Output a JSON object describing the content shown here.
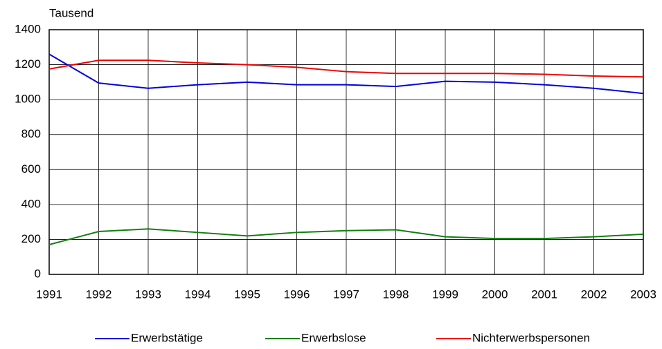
{
  "chart_data": {
    "type": "line",
    "y_label": "Tausend",
    "x": [
      1991,
      1992,
      1993,
      1994,
      1995,
      1996,
      1997,
      1998,
      1999,
      2000,
      2001,
      2002,
      2003
    ],
    "xlim": [
      1991,
      2003
    ],
    "xticks": [
      1991,
      1992,
      1993,
      1994,
      1995,
      1996,
      1997,
      1998,
      1999,
      2000,
      2001,
      2002,
      2003
    ],
    "ylim": [
      0,
      1400
    ],
    "yticks": [
      0,
      200,
      400,
      600,
      800,
      1000,
      1200,
      1400
    ],
    "grid": true,
    "legend": "bottom",
    "series": [
      {
        "name": "Erwerbstätige",
        "color": "#0000dd",
        "values": [
          1260,
          1095,
          1065,
          1085,
          1100,
          1085,
          1085,
          1075,
          1105,
          1100,
          1085,
          1065,
          1035
        ]
      },
      {
        "name": "Erwerbslose",
        "color": "#108010",
        "values": [
          170,
          245,
          260,
          240,
          220,
          240,
          250,
          255,
          215,
          205,
          205,
          215,
          230
        ]
      },
      {
        "name": "Nichterwerbspersonen",
        "color": "#ee0000",
        "values": [
          1175,
          1225,
          1225,
          1210,
          1200,
          1185,
          1160,
          1150,
          1150,
          1150,
          1145,
          1135,
          1130
        ]
      }
    ]
  }
}
